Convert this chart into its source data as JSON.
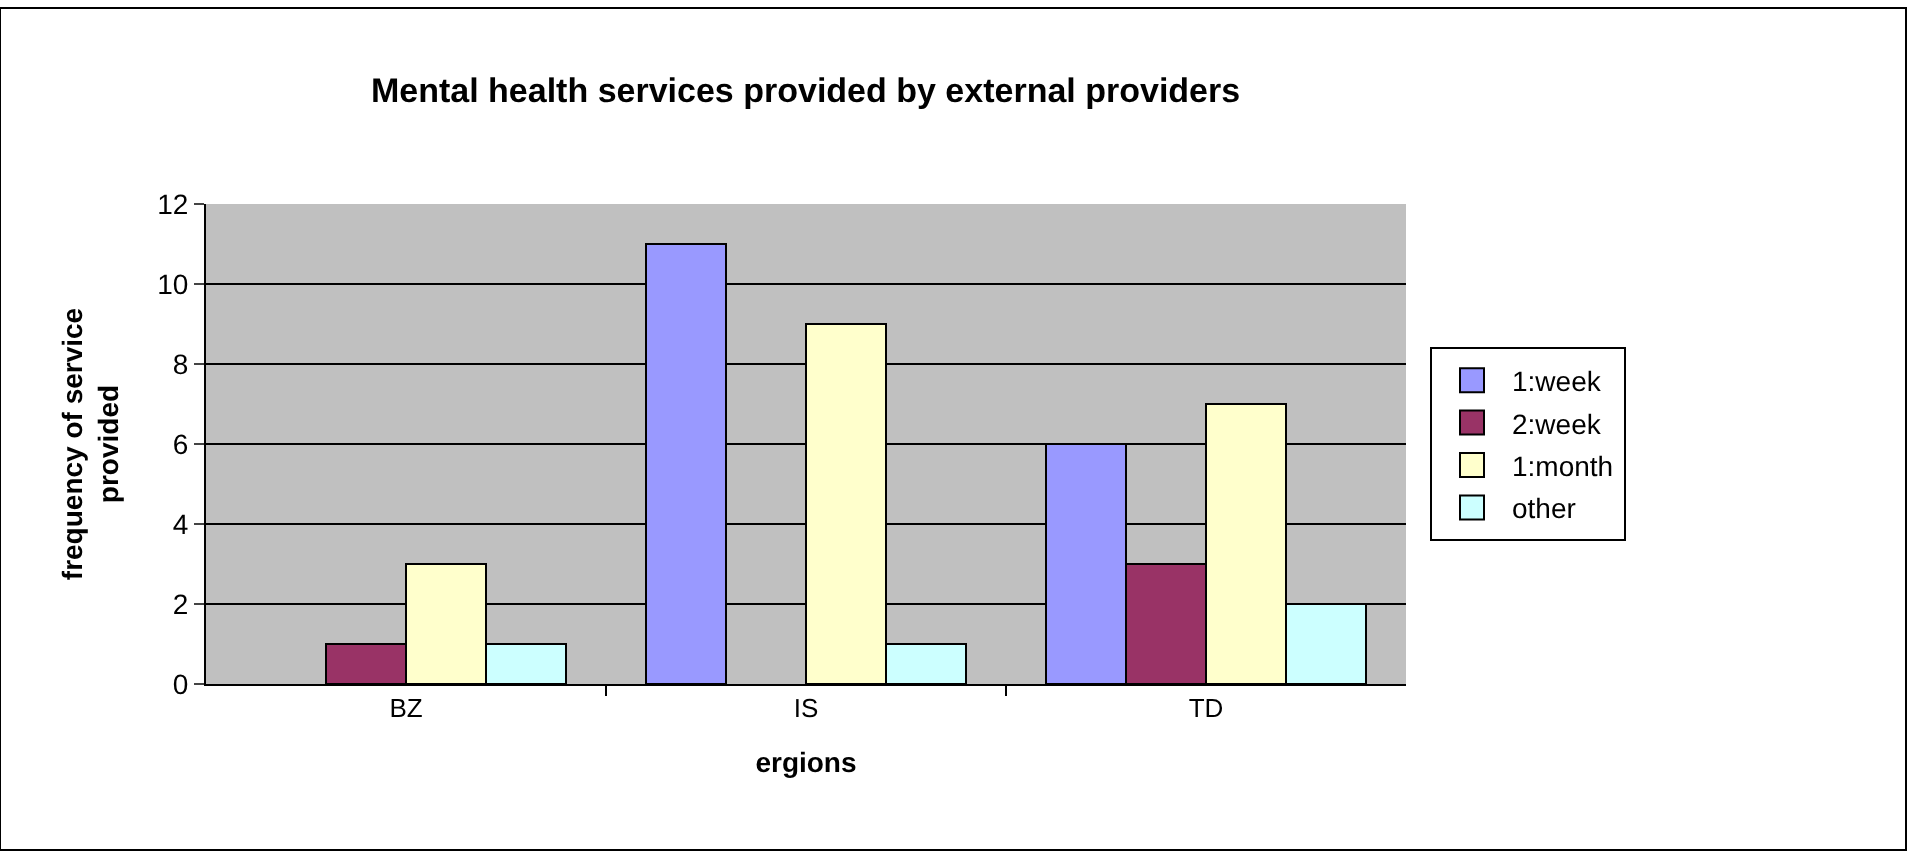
{
  "chart_data": {
    "type": "bar",
    "title": "Mental health services provided by external providers",
    "xlabel": "ergions",
    "ylabel": "frequency of service provided",
    "categories": [
      "BZ",
      "IS",
      "TD"
    ],
    "series": [
      {
        "name": "1:week",
        "color": "#9999ff",
        "values": [
          null,
          11,
          6
        ]
      },
      {
        "name": "2:week",
        "color": "#993366",
        "values": [
          1,
          null,
          3
        ]
      },
      {
        "name": "1:month",
        "color": "#ffffcc",
        "values": [
          3,
          9,
          7
        ]
      },
      {
        "name": "other",
        "color": "#ccffff",
        "values": [
          1,
          1,
          2
        ]
      }
    ],
    "ylim": [
      0,
      12
    ],
    "yticks": [
      0,
      2,
      4,
      6,
      8,
      10,
      12
    ],
    "grid": "y",
    "legend": "right"
  }
}
